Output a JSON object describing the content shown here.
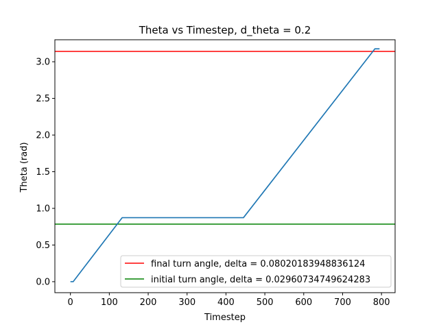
{
  "chart_data": {
    "type": "line",
    "title": "Theta vs Timestep, d_theta = 0.2",
    "xlabel": "Timestep",
    "ylabel": "Theta (rad)",
    "xlim": [
      -40,
      835
    ],
    "ylim": [
      -0.15,
      3.3
    ],
    "xticks": [
      0,
      100,
      200,
      300,
      400,
      500,
      600,
      700,
      800
    ],
    "yticks": [
      0.0,
      0.5,
      1.0,
      1.5,
      2.0,
      2.5,
      3.0
    ],
    "ytick_labels": [
      "0.0",
      "0.5",
      "1.0",
      "1.5",
      "2.0",
      "2.5",
      "3.0"
    ],
    "grid": false,
    "legend_position": "lower right",
    "series": [
      {
        "kind": "line",
        "color": "#1f77b4",
        "x": [
          0,
          7,
          133,
          445,
          783,
          795
        ],
        "y": [
          0.0,
          0.0,
          0.873,
          0.873,
          3.176,
          3.176
        ]
      }
    ],
    "reference_lines": [
      {
        "kind": "hline",
        "y": 3.1416,
        "color": "#ff0000",
        "label": "final turn angle, delta = 0.08020183948836124"
      },
      {
        "kind": "hline",
        "y": 0.7854,
        "color": "#008000",
        "label": "initial turn angle, delta = 0.02960734749624283"
      }
    ]
  }
}
